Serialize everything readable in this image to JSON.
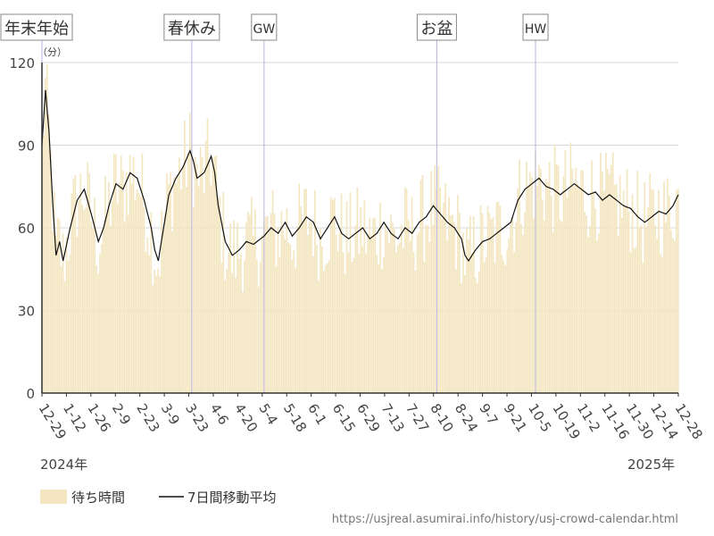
{
  "chart_data": {
    "type": "bar",
    "secondary_type": "line",
    "ylim": [
      0,
      120
    ],
    "yticks": [
      "0",
      "30",
      "60",
      "90",
      "120"
    ],
    "y_unit": "（分）",
    "x_tick_labels": [
      "12-29",
      "1-12",
      "1-26",
      "2-9",
      "2-23",
      "3-9",
      "3-23",
      "4-6",
      "4-20",
      "5-4",
      "5-18",
      "6-1",
      "6-15",
      "6-29",
      "7-13",
      "7-27",
      "8-10",
      "8-24",
      "9-7",
      "9-21",
      "10-5",
      "10-19",
      "11-2",
      "11-16",
      "11-30",
      "12-14",
      "12-28"
    ],
    "year_start": "2024年",
    "year_end": "2025年",
    "events": [
      {
        "label": "年末年始",
        "day": 0
      },
      {
        "label": "春休み",
        "day": 85
      },
      {
        "label": "GW",
        "day": 126
      },
      {
        "label": "お盆",
        "day": 224
      },
      {
        "label": "HW",
        "day": 280
      }
    ],
    "series": [
      {
        "name": "待ち時間",
        "color": "#f3e6c0"
      },
      {
        "name": "7日間移動平均",
        "color": "#111111"
      }
    ],
    "anchors": [
      [
        0,
        90
      ],
      [
        2,
        110
      ],
      [
        4,
        95
      ],
      [
        6,
        70
      ],
      [
        8,
        50
      ],
      [
        10,
        55
      ],
      [
        12,
        48
      ],
      [
        16,
        60
      ],
      [
        20,
        70
      ],
      [
        24,
        74
      ],
      [
        28,
        65
      ],
      [
        32,
        55
      ],
      [
        35,
        60
      ],
      [
        38,
        68
      ],
      [
        42,
        76
      ],
      [
        46,
        74
      ],
      [
        50,
        80
      ],
      [
        54,
        78
      ],
      [
        58,
        70
      ],
      [
        62,
        60
      ],
      [
        64,
        52
      ],
      [
        66,
        48
      ],
      [
        69,
        60
      ],
      [
        72,
        72
      ],
      [
        76,
        78
      ],
      [
        80,
        82
      ],
      [
        84,
        88
      ],
      [
        86,
        84
      ],
      [
        88,
        78
      ],
      [
        92,
        80
      ],
      [
        96,
        86
      ],
      [
        98,
        80
      ],
      [
        100,
        68
      ],
      [
        104,
        55
      ],
      [
        108,
        50
      ],
      [
        112,
        52
      ],
      [
        116,
        55
      ],
      [
        120,
        54
      ],
      [
        124,
        56
      ],
      [
        126,
        57
      ],
      [
        130,
        60
      ],
      [
        134,
        58
      ],
      [
        138,
        62
      ],
      [
        142,
        57
      ],
      [
        146,
        60
      ],
      [
        150,
        64
      ],
      [
        154,
        62
      ],
      [
        158,
        56
      ],
      [
        162,
        60
      ],
      [
        166,
        64
      ],
      [
        170,
        58
      ],
      [
        174,
        56
      ],
      [
        178,
        58
      ],
      [
        182,
        60
      ],
      [
        186,
        56
      ],
      [
        190,
        58
      ],
      [
        194,
        62
      ],
      [
        198,
        58
      ],
      [
        202,
        56
      ],
      [
        206,
        60
      ],
      [
        210,
        58
      ],
      [
        214,
        62
      ],
      [
        218,
        64
      ],
      [
        222,
        68
      ],
      [
        226,
        65
      ],
      [
        230,
        62
      ],
      [
        234,
        60
      ],
      [
        238,
        56
      ],
      [
        240,
        50
      ],
      [
        242,
        48
      ],
      [
        246,
        52
      ],
      [
        250,
        55
      ],
      [
        254,
        56
      ],
      [
        258,
        58
      ],
      [
        262,
        60
      ],
      [
        266,
        62
      ],
      [
        270,
        70
      ],
      [
        274,
        74
      ],
      [
        278,
        76
      ],
      [
        282,
        78
      ],
      [
        286,
        75
      ],
      [
        290,
        74
      ],
      [
        294,
        72
      ],
      [
        298,
        74
      ],
      [
        302,
        76
      ],
      [
        306,
        74
      ],
      [
        310,
        72
      ],
      [
        314,
        73
      ],
      [
        318,
        70
      ],
      [
        322,
        72
      ],
      [
        326,
        70
      ],
      [
        330,
        68
      ],
      [
        334,
        67
      ],
      [
        338,
        64
      ],
      [
        342,
        62
      ],
      [
        346,
        64
      ],
      [
        350,
        66
      ],
      [
        354,
        65
      ],
      [
        358,
        68
      ],
      [
        361,
        72
      ]
    ],
    "point_count": 362
  },
  "legend": {
    "bar_label": "待ち時間",
    "line_label": "7日間移動平均"
  },
  "source_url": "https://usjreal.asumirai.info/history/usj-crowd-calendar.html",
  "colors": {
    "bar": "#f3e6c0",
    "line": "#111111",
    "grid": "#d8d8d8",
    "event_line": "#b9b4e0",
    "axis": "#333333"
  }
}
